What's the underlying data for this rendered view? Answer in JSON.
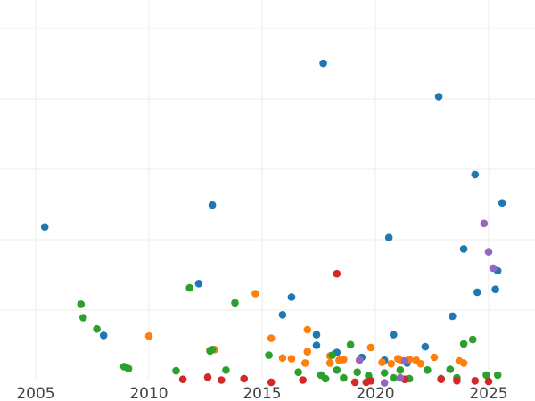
{
  "chart_data": {
    "type": "scatter",
    "title": "",
    "xlabel": "",
    "ylabel": "",
    "grid": true,
    "xlim": [
      2005.4,
      2025.8
    ],
    "ylim": [
      -0.3,
      5.2
    ],
    "x_ticks": [
      2005,
      2010,
      2015,
      2020,
      2025
    ],
    "y_gridlines": [
      0.5,
      1.5,
      2.5,
      3.5,
      4.5,
      5.5
    ],
    "series": [
      {
        "color": "#1f77b4",
        "points": [
          [
            2005.4,
            1.89
          ],
          [
            2008.0,
            0.36
          ],
          [
            2012.2,
            1.09
          ],
          [
            2012.8,
            2.2
          ],
          [
            2015.9,
            0.65
          ],
          [
            2016.3,
            0.9
          ],
          [
            2017.4,
            0.22
          ],
          [
            2017.4,
            0.37
          ],
          [
            2017.7,
            4.2
          ],
          [
            2018.3,
            0.12
          ],
          [
            2019.4,
            0.05
          ],
          [
            2020.4,
            0.01
          ],
          [
            2020.6,
            1.74
          ],
          [
            2020.8,
            0.37
          ],
          [
            2021.0,
            0.03
          ],
          [
            2021.4,
            -0.03
          ],
          [
            2022.2,
            0.2
          ],
          [
            2022.8,
            3.73
          ],
          [
            2023.4,
            0.63
          ],
          [
            2023.9,
            1.58
          ],
          [
            2024.4,
            2.63
          ],
          [
            2024.5,
            0.97
          ],
          [
            2025.3,
            1.01
          ],
          [
            2025.4,
            1.27
          ],
          [
            2025.6,
            2.23
          ]
        ]
      },
      {
        "color": "#ff7f0e",
        "points": [
          [
            2010.0,
            0.35
          ],
          [
            2012.7,
            0.15
          ],
          [
            2012.9,
            0.16
          ],
          [
            2014.7,
            0.95
          ],
          [
            2015.4,
            0.32
          ],
          [
            2015.9,
            0.04
          ],
          [
            2016.3,
            0.03
          ],
          [
            2016.9,
            -0.03
          ],
          [
            2017.0,
            0.13
          ],
          [
            2017.0,
            0.44
          ],
          [
            2018.0,
            -0.03
          ],
          [
            2018.0,
            0.07
          ],
          [
            2018.4,
            0.01
          ],
          [
            2018.6,
            0.02
          ],
          [
            2019.8,
            0.19
          ],
          [
            2020.3,
            -0.02
          ],
          [
            2020.7,
            -0.04
          ],
          [
            2021.0,
            0.03
          ],
          [
            2021.2,
            0.0
          ],
          [
            2021.5,
            0.02
          ],
          [
            2021.8,
            0.01
          ],
          [
            2022.0,
            -0.04
          ],
          [
            2022.6,
            0.05
          ],
          [
            2023.7,
            0.0
          ],
          [
            2023.9,
            -0.03
          ]
        ]
      },
      {
        "color": "#2ca02c",
        "points": [
          [
            2007.0,
            0.8
          ],
          [
            2007.1,
            0.61
          ],
          [
            2007.7,
            0.45
          ],
          [
            2008.9,
            -0.08
          ],
          [
            2009.1,
            -0.11
          ],
          [
            2011.2,
            -0.14
          ],
          [
            2011.8,
            1.03
          ],
          [
            2012.7,
            0.14
          ],
          [
            2012.8,
            0.16
          ],
          [
            2013.4,
            -0.13
          ],
          [
            2013.8,
            0.82
          ],
          [
            2015.3,
            0.08
          ],
          [
            2016.6,
            -0.16
          ],
          [
            2017.6,
            -0.2
          ],
          [
            2017.8,
            -0.25
          ],
          [
            2018.1,
            0.08
          ],
          [
            2018.3,
            -0.13
          ],
          [
            2018.6,
            -0.24
          ],
          [
            2018.9,
            0.23
          ],
          [
            2019.2,
            -0.16
          ],
          [
            2019.7,
            -0.21
          ],
          [
            2020.4,
            -0.17
          ],
          [
            2020.8,
            -0.24
          ],
          [
            2021.1,
            -0.13
          ],
          [
            2021.5,
            -0.25
          ],
          [
            2022.3,
            -0.13
          ],
          [
            2022.9,
            -0.25
          ],
          [
            2023.3,
            -0.12
          ],
          [
            2023.6,
            -0.24
          ],
          [
            2023.9,
            0.24
          ],
          [
            2024.3,
            0.3
          ],
          [
            2024.9,
            -0.2
          ],
          [
            2025.4,
            -0.2
          ]
        ]
      },
      {
        "color": "#d62728",
        "points": [
          [
            2011.5,
            -0.26
          ],
          [
            2012.6,
            -0.23
          ],
          [
            2013.2,
            -0.27
          ],
          [
            2014.2,
            -0.25
          ],
          [
            2015.4,
            -0.3
          ],
          [
            2016.8,
            -0.27
          ],
          [
            2018.3,
            1.23
          ],
          [
            2019.1,
            -0.3
          ],
          [
            2019.6,
            -0.3
          ],
          [
            2019.8,
            -0.28
          ],
          [
            2021.3,
            -0.26
          ],
          [
            2022.9,
            -0.26
          ],
          [
            2023.6,
            -0.28
          ],
          [
            2024.4,
            -0.28
          ],
          [
            2025.0,
            -0.29
          ]
        ]
      },
      {
        "color": "#9467bd",
        "points": [
          [
            2019.3,
            0.01
          ],
          [
            2020.4,
            -0.31
          ],
          [
            2021.1,
            -0.24
          ],
          [
            2021.3,
            0.0
          ],
          [
            2024.8,
            1.94
          ],
          [
            2025.0,
            1.54
          ],
          [
            2025.2,
            1.31
          ]
        ]
      }
    ]
  }
}
